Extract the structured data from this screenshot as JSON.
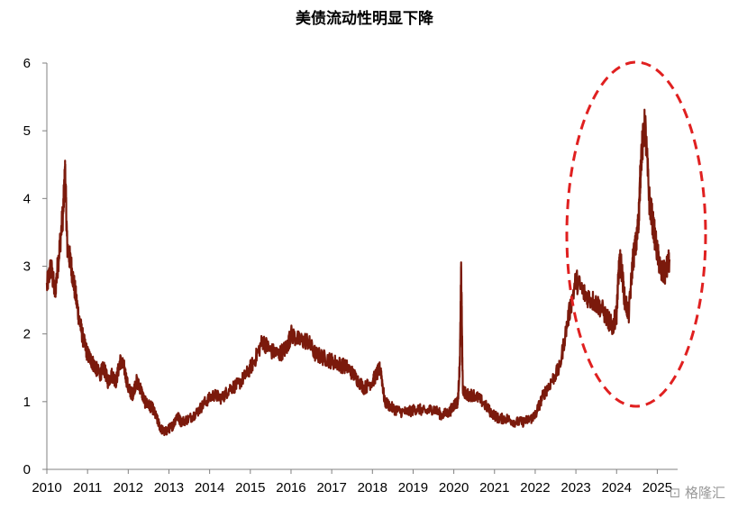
{
  "chart_data": {
    "type": "line",
    "title": "美债流动性明显下降",
    "xlabel": "",
    "ylabel": "",
    "ylim": [
      0,
      6
    ],
    "yticks": [
      "0",
      "1",
      "2",
      "3",
      "4",
      "5",
      "6"
    ],
    "xlim": [
      2010.0,
      2025.5
    ],
    "xticks": [
      "2010",
      "2011",
      "2012",
      "2013",
      "2014",
      "2015",
      "2016",
      "2017",
      "2018",
      "2019",
      "2020",
      "2021",
      "2022",
      "2023",
      "2024",
      "2025"
    ],
    "grid": false,
    "legend": "none",
    "line_color": "#7b1a0c",
    "annotation": {
      "shape": "dashed-ellipse",
      "color": "#e02020",
      "highlights": "2023–2025"
    },
    "series": [
      {
        "x": [
          2010.0,
          2010.1,
          2010.2,
          2010.3,
          2010.4,
          2010.45,
          2010.5,
          2010.6,
          2010.7,
          2010.8,
          2010.9,
          2011.0,
          2011.1,
          2011.2,
          2011.3,
          2011.4,
          2011.5,
          2011.6,
          2011.7,
          2011.8,
          2011.9,
          2012.0,
          2012.1,
          2012.2,
          2012.3,
          2012.4,
          2012.5,
          2012.6,
          2012.7,
          2012.8,
          2012.9,
          2013.0,
          2013.1,
          2013.2,
          2013.3,
          2013.5,
          2013.7,
          2013.9,
          2014.1,
          2014.3,
          2014.5,
          2014.7,
          2014.9,
          2015.1,
          2015.3,
          2015.5,
          2015.7,
          2015.9,
          2016.0,
          2016.2,
          2016.4,
          2016.6,
          2016.8,
          2017.0,
          2017.2,
          2017.4,
          2017.6,
          2017.8,
          2018.0,
          2018.1,
          2018.2,
          2018.3,
          2018.5,
          2018.7,
          2018.9,
          2019.1,
          2019.3,
          2019.5,
          2019.7,
          2019.9,
          2020.0,
          2020.1,
          2020.15,
          2020.18,
          2020.22,
          2020.3,
          2020.5,
          2020.7,
          2020.9,
          2021.1,
          2021.3,
          2021.5,
          2021.7,
          2021.9,
          2022.0,
          2022.2,
          2022.4,
          2022.6,
          2022.8,
          2023.0,
          2023.2,
          2023.4,
          2023.6,
          2023.8,
          2023.9,
          2024.0,
          2024.05,
          2024.1,
          2024.2,
          2024.3,
          2024.4,
          2024.5,
          2024.55,
          2024.6,
          2024.7,
          2024.8,
          2024.9,
          2025.0,
          2025.1,
          2025.2,
          2025.3
        ],
        "y": [
          2.7,
          3.0,
          2.6,
          3.2,
          3.8,
          4.4,
          3.3,
          3.0,
          2.6,
          2.2,
          1.9,
          1.7,
          1.6,
          1.5,
          1.4,
          1.5,
          1.3,
          1.4,
          1.3,
          1.6,
          1.5,
          1.2,
          1.1,
          1.3,
          1.2,
          1.0,
          0.95,
          0.9,
          0.75,
          0.6,
          0.55,
          0.6,
          0.65,
          0.8,
          0.7,
          0.75,
          0.85,
          1.0,
          1.1,
          1.05,
          1.2,
          1.25,
          1.4,
          1.6,
          1.9,
          1.75,
          1.7,
          1.8,
          2.0,
          1.9,
          1.9,
          1.7,
          1.65,
          1.6,
          1.55,
          1.5,
          1.35,
          1.2,
          1.3,
          1.4,
          1.5,
          1.0,
          0.9,
          0.85,
          0.85,
          0.9,
          0.85,
          0.9,
          0.8,
          0.85,
          0.95,
          1.0,
          1.6,
          3.0,
          1.2,
          1.1,
          1.1,
          1.0,
          0.85,
          0.75,
          0.75,
          0.7,
          0.7,
          0.75,
          0.8,
          1.1,
          1.3,
          1.5,
          2.2,
          2.8,
          2.6,
          2.5,
          2.4,
          2.2,
          2.1,
          2.3,
          2.9,
          3.1,
          2.5,
          2.3,
          3.1,
          3.4,
          3.8,
          4.6,
          5.1,
          4.0,
          3.6,
          3.2,
          2.9,
          2.9,
          3.1
        ]
      }
    ]
  },
  "watermark": "格隆汇"
}
